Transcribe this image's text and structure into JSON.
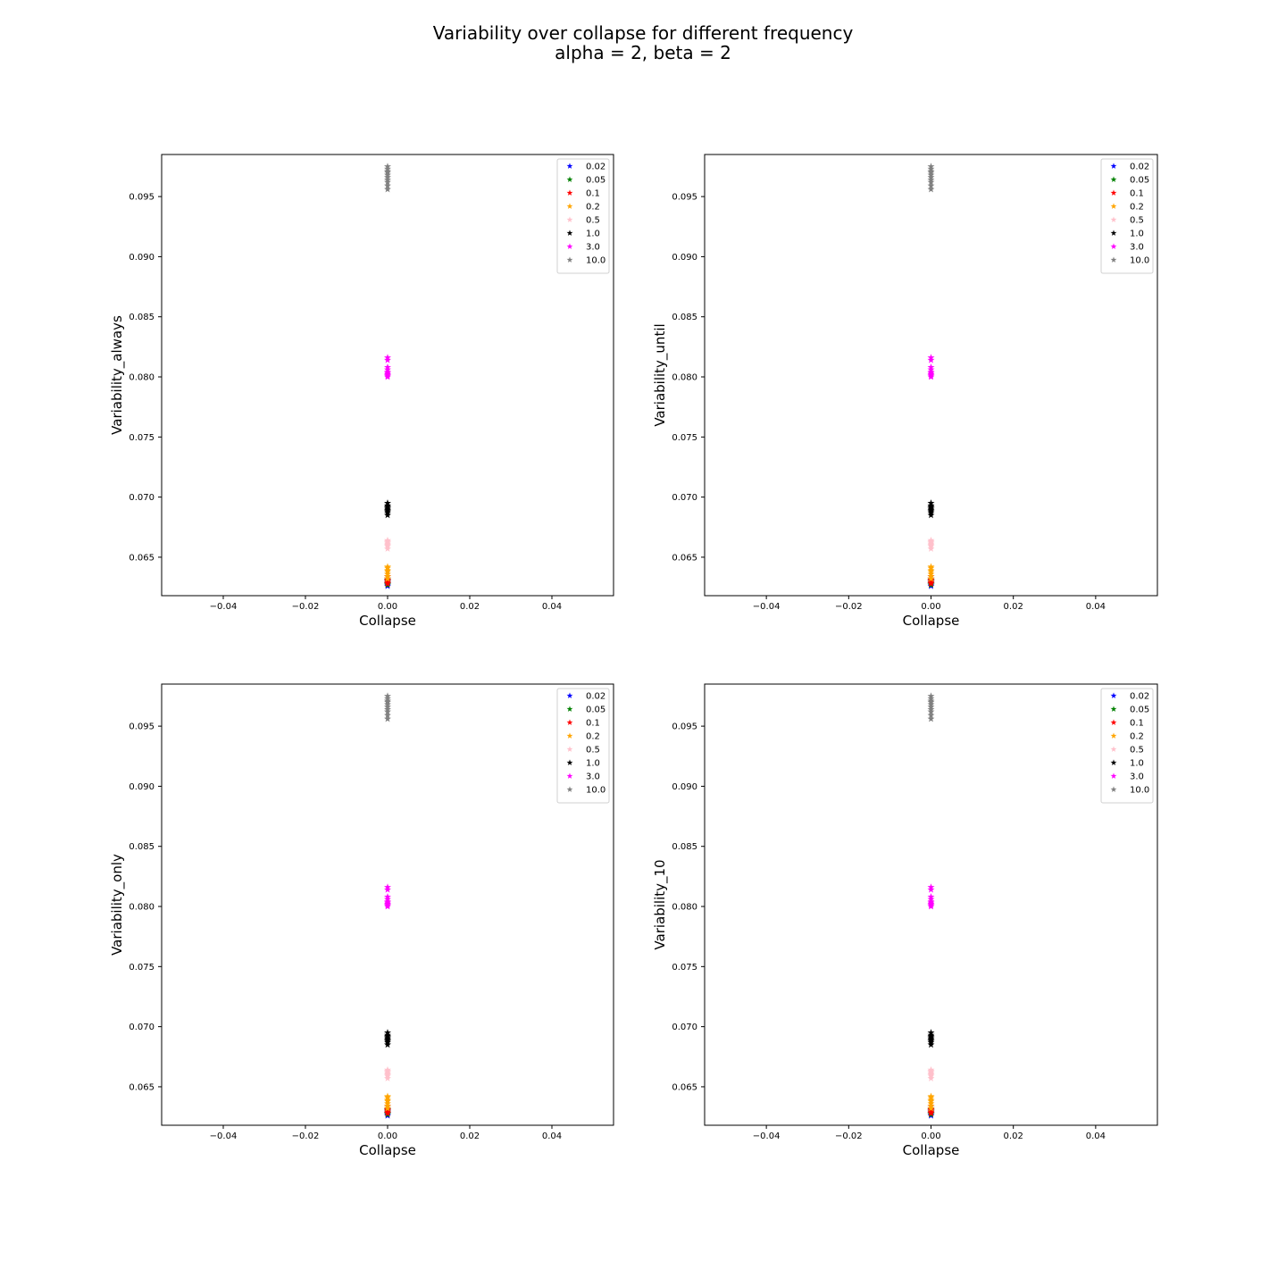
{
  "figure": {
    "title_line1": "Variability over collapse for different frequency",
    "title_line2": "alpha = 2, beta = 2"
  },
  "chart_data": [
    {
      "type": "scatter",
      "marker": "star",
      "xlabel": "Collapse",
      "ylabel": "Variability_always",
      "xlim": [
        -0.055,
        0.055
      ],
      "ylim": [
        0.0618,
        0.0985
      ],
      "xticks": [
        "−0.04",
        "−0.02",
        "0.00",
        "0.02",
        "0.04"
      ],
      "xtick_values": [
        -0.04,
        -0.02,
        0.0,
        0.02,
        0.04
      ],
      "yticks": [
        "0.065",
        "0.070",
        "0.075",
        "0.080",
        "0.085",
        "0.090",
        "0.095"
      ],
      "ytick_values": [
        0.065,
        0.07,
        0.075,
        0.08,
        0.085,
        0.09,
        0.095
      ],
      "grid": false,
      "legend_position": "upper right",
      "series": [
        {
          "name": "0.02",
          "color": "#0000ff",
          "x": [
            0,
            0,
            0,
            0,
            0,
            0
          ],
          "y": [
            0.0626,
            0.0627,
            0.0628,
            0.0629,
            0.063,
            0.0631
          ]
        },
        {
          "name": "0.05",
          "color": "#008000",
          "x": [
            0,
            0,
            0,
            0,
            0,
            0
          ],
          "y": [
            0.0627,
            0.0628,
            0.0629,
            0.063,
            0.0631,
            0.0632
          ]
        },
        {
          "name": "0.1",
          "color": "#ff0000",
          "x": [
            0,
            0,
            0,
            0,
            0,
            0
          ],
          "y": [
            0.0628,
            0.0629,
            0.063,
            0.0631,
            0.0632,
            0.0634
          ]
        },
        {
          "name": "0.2",
          "color": "#ffa500",
          "x": [
            0,
            0,
            0,
            0,
            0,
            0,
            0
          ],
          "y": [
            0.0632,
            0.0634,
            0.0636,
            0.0638,
            0.0639,
            0.0641,
            0.0642
          ]
        },
        {
          "name": "0.5",
          "color": "#ffc0cb",
          "x": [
            0,
            0,
            0,
            0,
            0,
            0,
            0
          ],
          "y": [
            0.0657,
            0.0659,
            0.066,
            0.0661,
            0.0662,
            0.0663,
            0.0664
          ]
        },
        {
          "name": "1.0",
          "color": "#000000",
          "x": [
            0,
            0,
            0,
            0,
            0,
            0,
            0,
            0,
            0
          ],
          "y": [
            0.0685,
            0.0687,
            0.0688,
            0.0689,
            0.069,
            0.0691,
            0.0692,
            0.0693,
            0.0695
          ]
        },
        {
          "name": "3.0",
          "color": "#ff00ff",
          "x": [
            0,
            0,
            0,
            0,
            0,
            0,
            0,
            0,
            0
          ],
          "y": [
            0.08,
            0.0801,
            0.0802,
            0.0803,
            0.0804,
            0.0806,
            0.0808,
            0.0814,
            0.0816
          ]
        },
        {
          "name": "10.0",
          "color": "#808080",
          "x": [
            0,
            0,
            0,
            0,
            0,
            0,
            0,
            0,
            0,
            0
          ],
          "y": [
            0.0956,
            0.0959,
            0.0962,
            0.0964,
            0.0966,
            0.0968,
            0.097,
            0.0971,
            0.0973,
            0.0975
          ]
        }
      ]
    },
    {
      "type": "scatter",
      "marker": "star",
      "xlabel": "Collapse",
      "ylabel": "Variability_until",
      "xlim": [
        -0.055,
        0.055
      ],
      "ylim": [
        0.0618,
        0.0985
      ],
      "xticks": [
        "−0.04",
        "−0.02",
        "0.00",
        "0.02",
        "0.04"
      ],
      "xtick_values": [
        -0.04,
        -0.02,
        0.0,
        0.02,
        0.04
      ],
      "yticks": [
        "0.065",
        "0.070",
        "0.075",
        "0.080",
        "0.085",
        "0.090",
        "0.095"
      ],
      "ytick_values": [
        0.065,
        0.07,
        0.075,
        0.08,
        0.085,
        0.09,
        0.095
      ],
      "grid": false,
      "legend_position": "upper right",
      "series": [
        {
          "name": "0.02",
          "color": "#0000ff",
          "x": [
            0,
            0,
            0,
            0,
            0,
            0
          ],
          "y": [
            0.0626,
            0.0627,
            0.0628,
            0.0629,
            0.063,
            0.0631
          ]
        },
        {
          "name": "0.05",
          "color": "#008000",
          "x": [
            0,
            0,
            0,
            0,
            0,
            0
          ],
          "y": [
            0.0627,
            0.0628,
            0.0629,
            0.063,
            0.0631,
            0.0632
          ]
        },
        {
          "name": "0.1",
          "color": "#ff0000",
          "x": [
            0,
            0,
            0,
            0,
            0,
            0
          ],
          "y": [
            0.0628,
            0.0629,
            0.063,
            0.0631,
            0.0632,
            0.0634
          ]
        },
        {
          "name": "0.2",
          "color": "#ffa500",
          "x": [
            0,
            0,
            0,
            0,
            0,
            0,
            0
          ],
          "y": [
            0.0632,
            0.0634,
            0.0636,
            0.0638,
            0.0639,
            0.0641,
            0.0642
          ]
        },
        {
          "name": "0.5",
          "color": "#ffc0cb",
          "x": [
            0,
            0,
            0,
            0,
            0,
            0,
            0
          ],
          "y": [
            0.0657,
            0.0659,
            0.066,
            0.0661,
            0.0662,
            0.0663,
            0.0664
          ]
        },
        {
          "name": "1.0",
          "color": "#000000",
          "x": [
            0,
            0,
            0,
            0,
            0,
            0,
            0,
            0,
            0
          ],
          "y": [
            0.0685,
            0.0687,
            0.0688,
            0.0689,
            0.069,
            0.0691,
            0.0692,
            0.0693,
            0.0695
          ]
        },
        {
          "name": "3.0",
          "color": "#ff00ff",
          "x": [
            0,
            0,
            0,
            0,
            0,
            0,
            0,
            0,
            0
          ],
          "y": [
            0.08,
            0.0801,
            0.0802,
            0.0803,
            0.0804,
            0.0806,
            0.0808,
            0.0814,
            0.0816
          ]
        },
        {
          "name": "10.0",
          "color": "#808080",
          "x": [
            0,
            0,
            0,
            0,
            0,
            0,
            0,
            0,
            0,
            0
          ],
          "y": [
            0.0956,
            0.0959,
            0.0962,
            0.0964,
            0.0966,
            0.0968,
            0.097,
            0.0971,
            0.0973,
            0.0975
          ]
        }
      ]
    },
    {
      "type": "scatter",
      "marker": "star",
      "xlabel": "Collapse",
      "ylabel": "Variability_only",
      "xlim": [
        -0.055,
        0.055
      ],
      "ylim": [
        0.0618,
        0.0985
      ],
      "xticks": [
        "−0.04",
        "−0.02",
        "0.00",
        "0.02",
        "0.04"
      ],
      "xtick_values": [
        -0.04,
        -0.02,
        0.0,
        0.02,
        0.04
      ],
      "yticks": [
        "0.065",
        "0.070",
        "0.075",
        "0.080",
        "0.085",
        "0.090",
        "0.095"
      ],
      "ytick_values": [
        0.065,
        0.07,
        0.075,
        0.08,
        0.085,
        0.09,
        0.095
      ],
      "grid": false,
      "legend_position": "upper right",
      "series": [
        {
          "name": "0.02",
          "color": "#0000ff",
          "x": [
            0,
            0,
            0,
            0,
            0,
            0
          ],
          "y": [
            0.0626,
            0.0627,
            0.0628,
            0.0629,
            0.063,
            0.0631
          ]
        },
        {
          "name": "0.05",
          "color": "#008000",
          "x": [
            0,
            0,
            0,
            0,
            0,
            0
          ],
          "y": [
            0.0627,
            0.0628,
            0.0629,
            0.063,
            0.0631,
            0.0632
          ]
        },
        {
          "name": "0.1",
          "color": "#ff0000",
          "x": [
            0,
            0,
            0,
            0,
            0,
            0
          ],
          "y": [
            0.0628,
            0.0629,
            0.063,
            0.0631,
            0.0632,
            0.0634
          ]
        },
        {
          "name": "0.2",
          "color": "#ffa500",
          "x": [
            0,
            0,
            0,
            0,
            0,
            0,
            0
          ],
          "y": [
            0.0632,
            0.0634,
            0.0636,
            0.0638,
            0.0639,
            0.0641,
            0.0642
          ]
        },
        {
          "name": "0.5",
          "color": "#ffc0cb",
          "x": [
            0,
            0,
            0,
            0,
            0,
            0,
            0
          ],
          "y": [
            0.0657,
            0.0659,
            0.066,
            0.0661,
            0.0662,
            0.0663,
            0.0664
          ]
        },
        {
          "name": "1.0",
          "color": "#000000",
          "x": [
            0,
            0,
            0,
            0,
            0,
            0,
            0,
            0,
            0
          ],
          "y": [
            0.0685,
            0.0687,
            0.0688,
            0.0689,
            0.069,
            0.0691,
            0.0692,
            0.0693,
            0.0695
          ]
        },
        {
          "name": "3.0",
          "color": "#ff00ff",
          "x": [
            0,
            0,
            0,
            0,
            0,
            0,
            0,
            0,
            0
          ],
          "y": [
            0.08,
            0.0801,
            0.0802,
            0.0803,
            0.0804,
            0.0806,
            0.0808,
            0.0814,
            0.0816
          ]
        },
        {
          "name": "10.0",
          "color": "#808080",
          "x": [
            0,
            0,
            0,
            0,
            0,
            0,
            0,
            0,
            0,
            0
          ],
          "y": [
            0.0956,
            0.0959,
            0.0962,
            0.0964,
            0.0966,
            0.0968,
            0.097,
            0.0971,
            0.0973,
            0.0975
          ]
        }
      ]
    },
    {
      "type": "scatter",
      "marker": "star",
      "xlabel": "Collapse",
      "ylabel": "Variability_10",
      "xlim": [
        -0.055,
        0.055
      ],
      "ylim": [
        0.0618,
        0.0985
      ],
      "xticks": [
        "−0.04",
        "−0.02",
        "0.00",
        "0.02",
        "0.04"
      ],
      "xtick_values": [
        -0.04,
        -0.02,
        0.0,
        0.02,
        0.04
      ],
      "yticks": [
        "0.065",
        "0.070",
        "0.075",
        "0.080",
        "0.085",
        "0.090",
        "0.095"
      ],
      "ytick_values": [
        0.065,
        0.07,
        0.075,
        0.08,
        0.085,
        0.09,
        0.095
      ],
      "grid": false,
      "legend_position": "upper right",
      "series": [
        {
          "name": "0.02",
          "color": "#0000ff",
          "x": [
            0,
            0,
            0,
            0,
            0,
            0
          ],
          "y": [
            0.0626,
            0.0627,
            0.0628,
            0.0629,
            0.063,
            0.0631
          ]
        },
        {
          "name": "0.05",
          "color": "#008000",
          "x": [
            0,
            0,
            0,
            0,
            0,
            0
          ],
          "y": [
            0.0627,
            0.0628,
            0.0629,
            0.063,
            0.0631,
            0.0632
          ]
        },
        {
          "name": "0.1",
          "color": "#ff0000",
          "x": [
            0,
            0,
            0,
            0,
            0,
            0
          ],
          "y": [
            0.0628,
            0.0629,
            0.063,
            0.0631,
            0.0632,
            0.0634
          ]
        },
        {
          "name": "0.2",
          "color": "#ffa500",
          "x": [
            0,
            0,
            0,
            0,
            0,
            0,
            0
          ],
          "y": [
            0.0632,
            0.0634,
            0.0636,
            0.0638,
            0.0639,
            0.0641,
            0.0642
          ]
        },
        {
          "name": "0.5",
          "color": "#ffc0cb",
          "x": [
            0,
            0,
            0,
            0,
            0,
            0,
            0
          ],
          "y": [
            0.0657,
            0.0659,
            0.066,
            0.0661,
            0.0662,
            0.0663,
            0.0664
          ]
        },
        {
          "name": "1.0",
          "color": "#000000",
          "x": [
            0,
            0,
            0,
            0,
            0,
            0,
            0,
            0,
            0
          ],
          "y": [
            0.0685,
            0.0687,
            0.0688,
            0.0689,
            0.069,
            0.0691,
            0.0692,
            0.0693,
            0.0695
          ]
        },
        {
          "name": "3.0",
          "color": "#ff00ff",
          "x": [
            0,
            0,
            0,
            0,
            0,
            0,
            0,
            0,
            0
          ],
          "y": [
            0.08,
            0.0801,
            0.0802,
            0.0803,
            0.0804,
            0.0806,
            0.0808,
            0.0814,
            0.0816
          ]
        },
        {
          "name": "10.0",
          "color": "#808080",
          "x": [
            0,
            0,
            0,
            0,
            0,
            0,
            0,
            0,
            0,
            0
          ],
          "y": [
            0.0956,
            0.0959,
            0.0962,
            0.0964,
            0.0966,
            0.0968,
            0.097,
            0.0971,
            0.0973,
            0.0975
          ]
        }
      ]
    }
  ]
}
